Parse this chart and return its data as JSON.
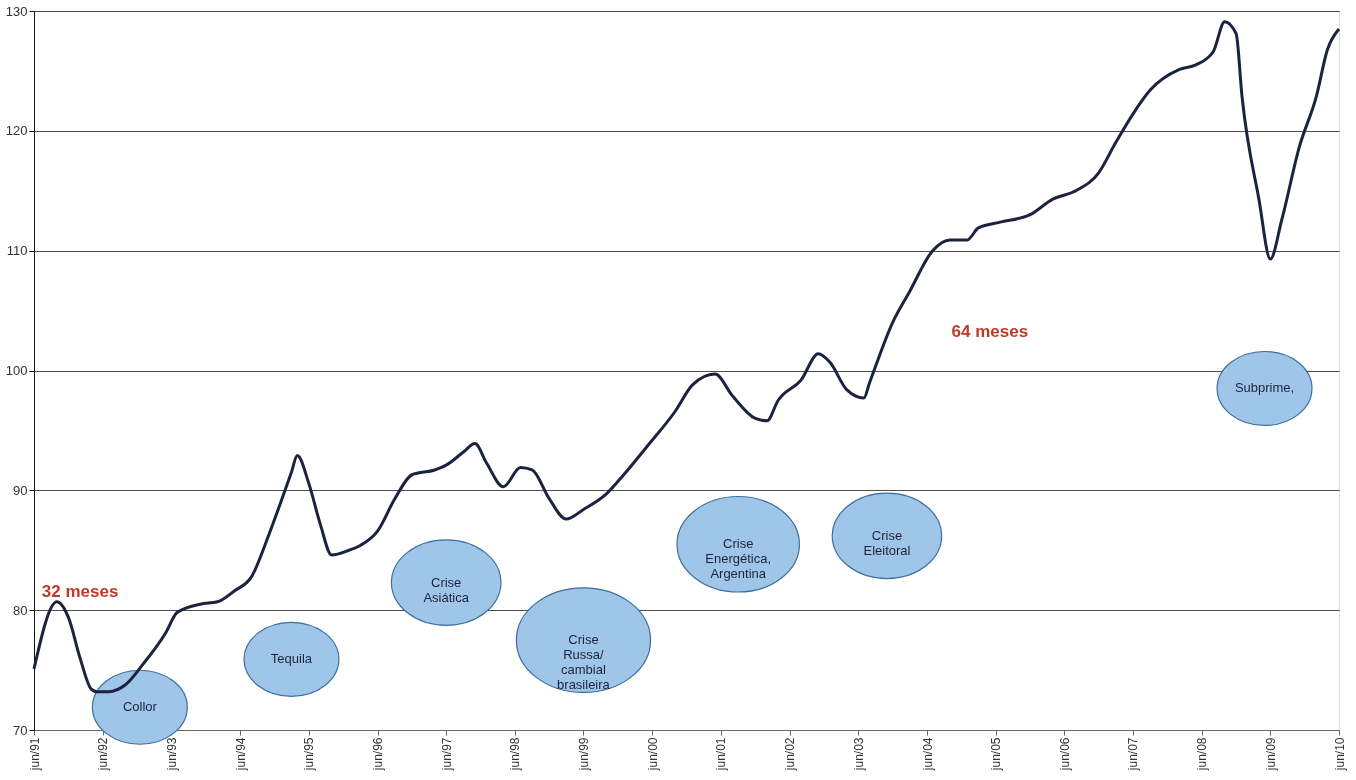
{
  "chart_data": {
    "type": "line",
    "x": [
      "1991-06",
      "1991-10",
      "1991-12",
      "1992-02",
      "1992-04",
      "1992-05",
      "1992-07",
      "1992-10",
      "1993-01",
      "1993-05",
      "1993-07",
      "1993-11",
      "1994-02",
      "1994-05",
      "1994-08",
      "1994-11",
      "1995-01",
      "1995-03",
      "1995-04",
      "1995-06",
      "1995-08",
      "1995-10",
      "1996-01",
      "1996-03",
      "1996-06",
      "1996-09",
      "1996-12",
      "1997-04",
      "1997-06",
      "1997-09",
      "1997-11",
      "1998-01",
      "1998-04",
      "1998-07",
      "1998-09",
      "1998-12",
      "1999-03",
      "1999-06",
      "1999-10",
      "2000-01",
      "2000-05",
      "2000-10",
      "2001-01",
      "2001-05",
      "2001-08",
      "2001-12",
      "2002-02",
      "2002-04",
      "2002-08",
      "2002-11",
      "2003-01",
      "2003-04",
      "2003-07",
      "2003-08",
      "2003-12",
      "2004-03",
      "2004-07",
      "2004-10",
      "2005-01",
      "2005-03",
      "2005-07",
      "2005-12",
      "2006-04",
      "2006-08",
      "2006-12",
      "2007-03",
      "2007-06",
      "2007-09",
      "2008-02",
      "2008-05",
      "2008-08",
      "2008-10",
      "2008-12",
      "2009-01",
      "2009-04",
      "2009-06",
      "2009-08",
      "2009-11",
      "2010-02",
      "2010-04",
      "2010-06"
    ],
    "series": [
      {
        "color": "#1c2340",
        "values": [
          75.1,
          80.7,
          79.4,
          76.0,
          73.4,
          73.2,
          73.2,
          73.8,
          75.5,
          78.1,
          79.8,
          80.5,
          80.7,
          81.6,
          82.8,
          86.3,
          88.9,
          91.5,
          92.9,
          90.6,
          87.2,
          84.6,
          85.0,
          85.4,
          86.6,
          89.3,
          91.3,
          91.7,
          92.1,
          93.2,
          93.9,
          92.3,
          90.3,
          91.9,
          91.7,
          89.3,
          87.6,
          88.4,
          89.7,
          91.3,
          93.6,
          96.6,
          98.8,
          99.7,
          97.9,
          96.0,
          95.8,
          97.5,
          99.2,
          101.4,
          100.7,
          98.4,
          97.7,
          99.0,
          104.0,
          106.6,
          110.0,
          110.9,
          110.9,
          111.9,
          112.4,
          113.0,
          114.3,
          115.0,
          116.5,
          119.0,
          121.4,
          123.4,
          125.1,
          125.5,
          126.6,
          129.1,
          128.1,
          122.9,
          114.3,
          109.3,
          112.6,
          118.6,
          122.9,
          126.8,
          128.5
        ]
      }
    ],
    "xlim": [
      "1991-06",
      "2010-06"
    ],
    "xticks": [
      {
        "value": "1991-06",
        "label": "jun/91"
      },
      {
        "value": "1992-06",
        "label": "jun/92"
      },
      {
        "value": "1993-06",
        "label": "jun/93"
      },
      {
        "value": "1994-06",
        "label": "jun/94"
      },
      {
        "value": "1995-06",
        "label": "jun/95"
      },
      {
        "value": "1996-06",
        "label": "jun/96"
      },
      {
        "value": "1997-06",
        "label": "jun/97"
      },
      {
        "value": "1998-06",
        "label": "jun/98"
      },
      {
        "value": "1999-06",
        "label": "jun/99"
      },
      {
        "value": "2000-06",
        "label": "jun/00"
      },
      {
        "value": "2001-06",
        "label": "jun/01"
      },
      {
        "value": "2002-06",
        "label": "jun/02"
      },
      {
        "value": "2003-06",
        "label": "jun/03"
      },
      {
        "value": "2004-06",
        "label": "jun/04"
      },
      {
        "value": "2005-06",
        "label": "jun/05"
      },
      {
        "value": "2006-06",
        "label": "jun/06"
      },
      {
        "value": "2007-06",
        "label": "jun/07"
      },
      {
        "value": "2008-06",
        "label": "jun/08"
      },
      {
        "value": "2009-06",
        "label": "jun/09"
      },
      {
        "value": "2010-06",
        "label": "jun/10"
      }
    ],
    "ylim": [
      70,
      130
    ],
    "yticks": [
      70,
      80,
      90,
      100,
      110,
      120,
      130
    ],
    "grid": "y",
    "legend": false,
    "annotations": [
      "Collor",
      "Tequila",
      "Crise Asiática",
      "Crise Russa/ cambial brasileira",
      "Crise Energética, Argentina",
      "Crise Eleitoral",
      "Subprime,",
      "32 meses",
      "64 meses"
    ]
  }
}
